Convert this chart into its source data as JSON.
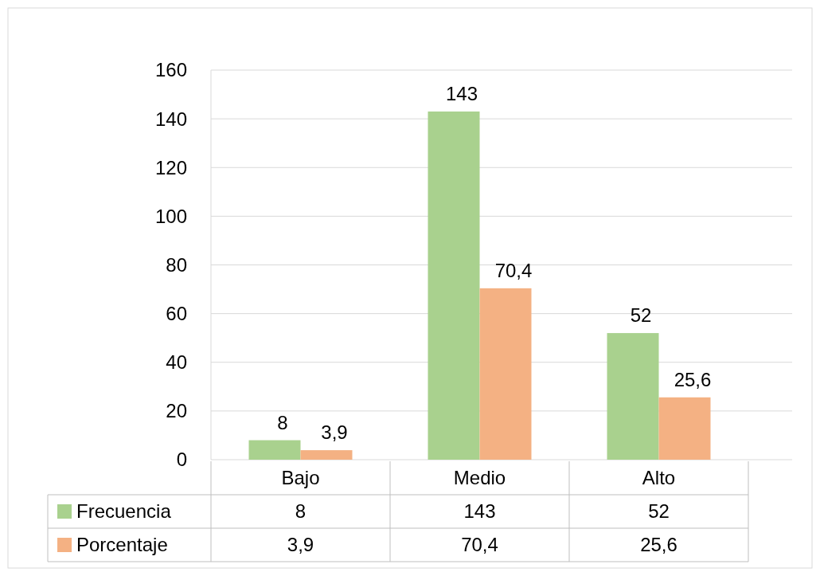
{
  "chart_data": {
    "type": "bar",
    "categories": [
      "Bajo",
      "Medio",
      "Alto"
    ],
    "series": [
      {
        "name": "Frecuencia",
        "color": "#a9d18e",
        "values": [
          8,
          143,
          52
        ],
        "value_labels": [
          "8",
          "143",
          "52"
        ]
      },
      {
        "name": "Porcentaje",
        "color": "#f4b183",
        "values": [
          3.9,
          70.4,
          25.6
        ],
        "value_labels": [
          "3,9",
          "70,4",
          "25,6"
        ]
      }
    ],
    "ylim": [
      0,
      160
    ],
    "yticks": [
      0,
      20,
      40,
      60,
      80,
      100,
      120,
      140,
      160
    ],
    "grid": "y",
    "legend": "bottom"
  }
}
